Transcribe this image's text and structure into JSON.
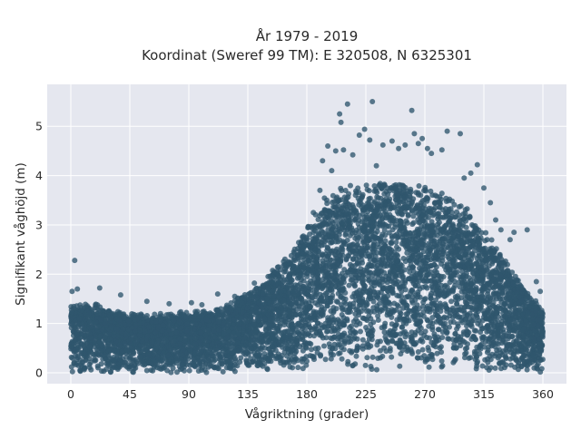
{
  "chart_data": {
    "type": "scatter",
    "title_line1": "År 1979 - 2019",
    "title_line2": "Koordinat (Sweref 99 TM): E 320508, N 6325301",
    "xlabel": "Vågriktning (grader)",
    "ylabel": "Signifikant våghöjd (m)",
    "xlim": [
      -18,
      378
    ],
    "ylim": [
      -0.22,
      5.85
    ],
    "grid": true,
    "background_color": "#e5e7ef",
    "point_color": "#2f566d",
    "x_ticks": [
      0,
      45,
      90,
      135,
      180,
      225,
      270,
      315,
      360
    ],
    "x_tick_labels": [
      "0",
      "45",
      "90",
      "135",
      "180",
      "225",
      "270",
      "315",
      "360"
    ],
    "y_ticks": [
      0,
      1,
      2,
      3,
      4,
      5
    ],
    "y_tick_labels": [
      "0",
      "1",
      "2",
      "3",
      "4",
      "5"
    ],
    "envelope": {
      "x": [
        0,
        10,
        20,
        30,
        45,
        60,
        75,
        90,
        105,
        120,
        135,
        150,
        165,
        180,
        195,
        210,
        225,
        240,
        255,
        270,
        285,
        300,
        315,
        330,
        345,
        360
      ],
      "upper": [
        1.35,
        1.4,
        1.35,
        1.25,
        1.2,
        1.15,
        1.2,
        1.2,
        1.25,
        1.35,
        1.6,
        1.95,
        2.3,
        2.9,
        3.5,
        3.7,
        3.75,
        3.8,
        3.85,
        3.75,
        3.6,
        3.3,
        2.9,
        2.3,
        1.7,
        1.3
      ],
      "lower": [
        0.0,
        0.0,
        0.0,
        0.0,
        0.0,
        0.0,
        0.0,
        0.0,
        0.0,
        0.0,
        0.02,
        0.03,
        0.05,
        0.05,
        0.05,
        0.05,
        0.05,
        0.05,
        0.05,
        0.05,
        0.05,
        0.05,
        0.03,
        0.02,
        0.0,
        0.0
      ]
    },
    "outliers": [
      {
        "x": 3,
        "y": 2.28
      },
      {
        "x": 1,
        "y": 1.65
      },
      {
        "x": 5,
        "y": 1.7
      },
      {
        "x": 22,
        "y": 1.72
      },
      {
        "x": 38,
        "y": 1.58
      },
      {
        "x": 92,
        "y": 1.42
      },
      {
        "x": 112,
        "y": 1.6
      },
      {
        "x": 140,
        "y": 1.82
      },
      {
        "x": 155,
        "y": 2.05
      },
      {
        "x": 170,
        "y": 2.45
      },
      {
        "x": 185,
        "y": 3.25
      },
      {
        "x": 190,
        "y": 3.7
      },
      {
        "x": 192,
        "y": 4.3
      },
      {
        "x": 196,
        "y": 4.6
      },
      {
        "x": 199,
        "y": 4.1
      },
      {
        "x": 202,
        "y": 4.5
      },
      {
        "x": 205,
        "y": 5.25
      },
      {
        "x": 206,
        "y": 5.08
      },
      {
        "x": 208,
        "y": 4.52
      },
      {
        "x": 211,
        "y": 5.45
      },
      {
        "x": 215,
        "y": 4.42
      },
      {
        "x": 220,
        "y": 4.82
      },
      {
        "x": 224,
        "y": 4.94
      },
      {
        "x": 228,
        "y": 4.72
      },
      {
        "x": 230,
        "y": 5.5
      },
      {
        "x": 233,
        "y": 4.2
      },
      {
        "x": 238,
        "y": 4.62
      },
      {
        "x": 245,
        "y": 4.7
      },
      {
        "x": 250,
        "y": 4.55
      },
      {
        "x": 255,
        "y": 4.62
      },
      {
        "x": 260,
        "y": 5.32
      },
      {
        "x": 262,
        "y": 4.85
      },
      {
        "x": 265,
        "y": 4.65
      },
      {
        "x": 268,
        "y": 4.75
      },
      {
        "x": 272,
        "y": 4.55
      },
      {
        "x": 275,
        "y": 4.45
      },
      {
        "x": 283,
        "y": 4.52
      },
      {
        "x": 287,
        "y": 4.9
      },
      {
        "x": 297,
        "y": 4.85
      },
      {
        "x": 300,
        "y": 3.95
      },
      {
        "x": 305,
        "y": 4.05
      },
      {
        "x": 310,
        "y": 4.22
      },
      {
        "x": 315,
        "y": 3.75
      },
      {
        "x": 320,
        "y": 3.45
      },
      {
        "x": 324,
        "y": 3.1
      },
      {
        "x": 328,
        "y": 2.9
      },
      {
        "x": 335,
        "y": 2.7
      },
      {
        "x": 338,
        "y": 2.85
      },
      {
        "x": 348,
        "y": 2.9
      },
      {
        "x": 355,
        "y": 1.85
      },
      {
        "x": 358,
        "y": 1.65
      },
      {
        "x": 58,
        "y": 1.45
      },
      {
        "x": 75,
        "y": 1.4
      },
      {
        "x": 100,
        "y": 1.38
      },
      {
        "x": 125,
        "y": 1.55
      }
    ]
  }
}
